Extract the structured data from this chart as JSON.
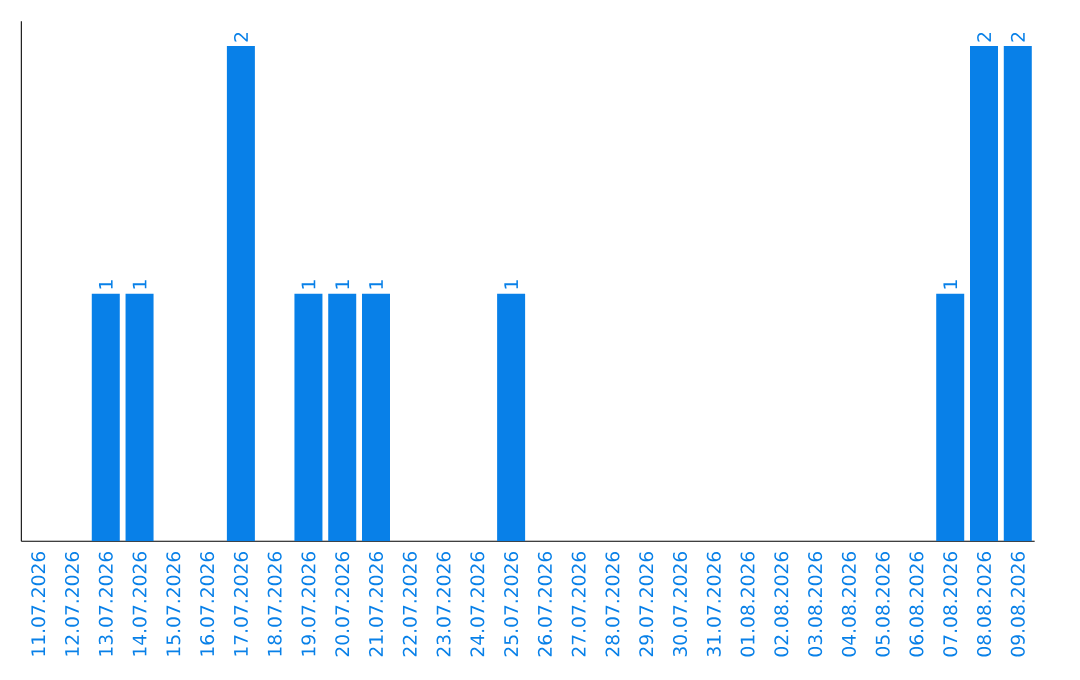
{
  "chart_data": {
    "type": "bar",
    "categories": [
      "11.07.2026",
      "12.07.2026",
      "13.07.2026",
      "14.07.2026",
      "15.07.2026",
      "16.07.2026",
      "17.07.2026",
      "18.07.2026",
      "19.07.2026",
      "20.07.2026",
      "21.07.2026",
      "22.07.2026",
      "23.07.2026",
      "24.07.2026",
      "25.07.2026",
      "26.07.2026",
      "27.07.2026",
      "28.07.2026",
      "29.07.2026",
      "30.07.2026",
      "31.07.2026",
      "01.08.2026",
      "02.08.2026",
      "03.08.2026",
      "04.08.2026",
      "05.08.2026",
      "06.08.2026",
      "07.08.2026",
      "08.08.2026",
      "09.08.2026"
    ],
    "values": [
      0,
      0,
      1,
      1,
      0,
      0,
      2,
      0,
      1,
      1,
      1,
      0,
      0,
      0,
      1,
      0,
      0,
      0,
      0,
      0,
      0,
      0,
      0,
      0,
      0,
      0,
      0,
      1,
      2,
      2
    ],
    "value_labels": [
      null,
      null,
      "1",
      "1",
      null,
      null,
      "2",
      null,
      "1",
      "1",
      "1",
      null,
      null,
      null,
      "1",
      null,
      null,
      null,
      null,
      null,
      null,
      null,
      null,
      null,
      null,
      null,
      null,
      "1",
      "2",
      "2"
    ],
    "color": "#0880e8",
    "ylim": [
      0,
      2.1
    ],
    "tick_labels": "x"
  }
}
